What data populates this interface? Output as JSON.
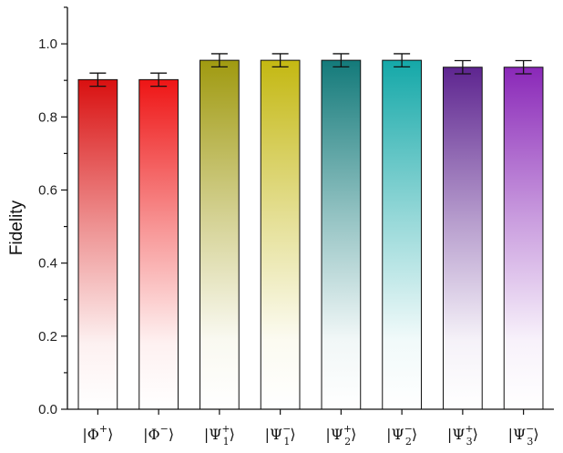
{
  "chart_data": {
    "type": "bar",
    "categories": [
      "|Φ+⟩",
      "|Φ−⟩",
      "|Ψ1+⟩",
      "|Ψ1−⟩",
      "|Ψ2+⟩",
      "|Ψ2−⟩",
      "|Ψ3+⟩",
      "|Ψ3−⟩"
    ],
    "category_parts": [
      {
        "base": "Φ",
        "sup": "+",
        "sub": ""
      },
      {
        "base": "Φ",
        "sup": "−",
        "sub": ""
      },
      {
        "base": "Ψ",
        "sup": "+",
        "sub": "1"
      },
      {
        "base": "Ψ",
        "sup": "−",
        "sub": "1"
      },
      {
        "base": "Ψ",
        "sup": "+",
        "sub": "2"
      },
      {
        "base": "Ψ",
        "sup": "−",
        "sub": "2"
      },
      {
        "base": "Ψ",
        "sup": "+",
        "sub": "3"
      },
      {
        "base": "Ψ",
        "sup": "−",
        "sub": "3"
      }
    ],
    "values": [
      0.902,
      0.902,
      0.955,
      0.955,
      0.955,
      0.955,
      0.936,
      0.936
    ],
    "errors": [
      0.018,
      0.018,
      0.018,
      0.018,
      0.018,
      0.018,
      0.018,
      0.018
    ],
    "bar_colors": [
      "#d91010",
      "#ee1515",
      "#a09a10",
      "#c4b812",
      "#137a7a",
      "#14a8a8",
      "#5e2590",
      "#8a28b8"
    ],
    "title": "",
    "xlabel": "",
    "ylabel": "Fidelity",
    "ylim": [
      0,
      1.1
    ],
    "yticks": [
      "0.0",
      "0.2",
      "0.4",
      "0.6",
      "0.8",
      "1.0"
    ],
    "grid": false,
    "legend": "none",
    "gradient": "bar fill fades from solid color at top to white at bottom"
  }
}
